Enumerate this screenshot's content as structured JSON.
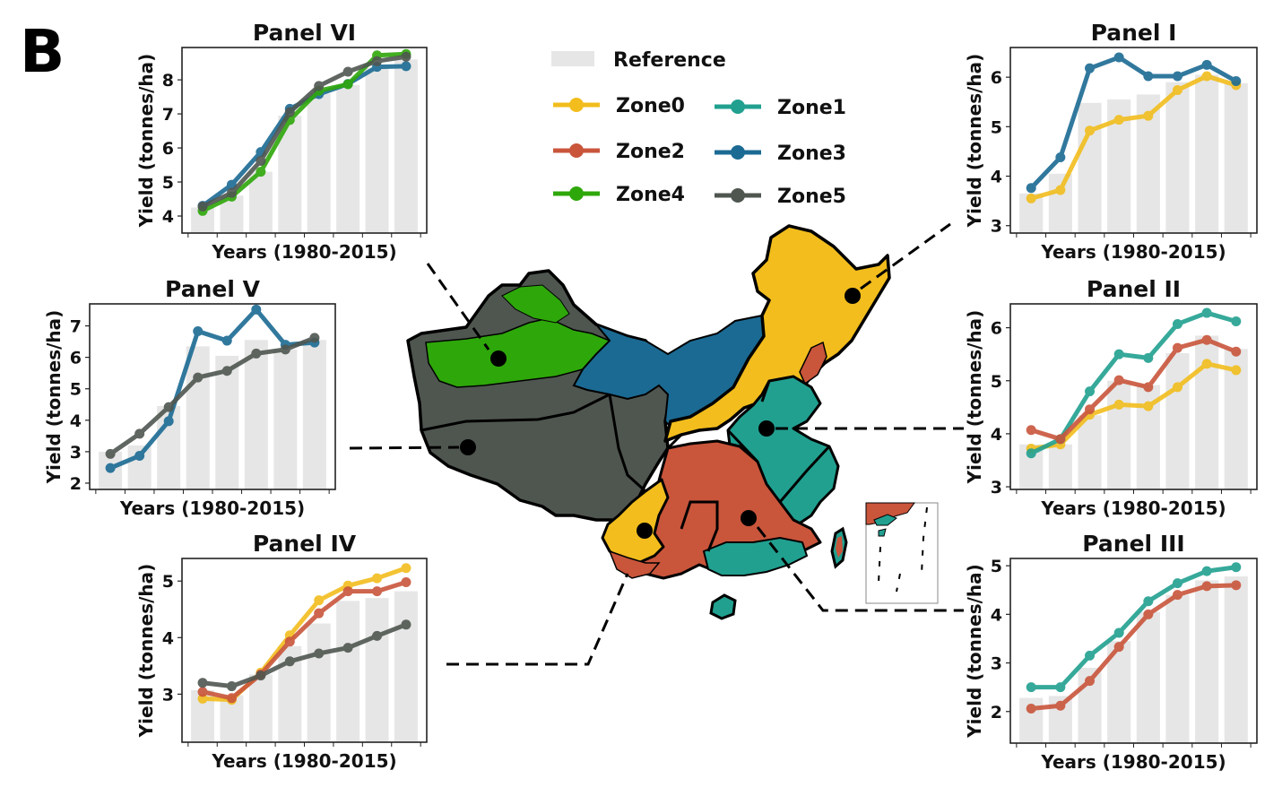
{
  "figure_label": "B",
  "legend": {
    "reference_label": "Reference",
    "reference_color": "#e6e6e6",
    "zones": [
      {
        "name": "Zone0",
        "color": "#f2bd1d"
      },
      {
        "name": "Zone1",
        "color": "#21a090"
      },
      {
        "name": "Zone2",
        "color": "#c9553b"
      },
      {
        "name": "Zone3",
        "color": "#1b6a93"
      },
      {
        "name": "Zone4",
        "color": "#2ea70a"
      },
      {
        "name": "Zone5",
        "color": "#4f5650"
      }
    ]
  },
  "chart_data": [
    {
      "id": "panel-vi",
      "type": "bar+line",
      "title": "Panel VI",
      "xlabel": "Years (1980-2015)",
      "ylabel": "Yield (tonnes/ha)",
      "ylim": [
        3.5,
        8.95
      ],
      "yticks": [
        4,
        5,
        6,
        7,
        8
      ],
      "reference": [
        4.25,
        4.6,
        5.3,
        6.95,
        7.6,
        7.85,
        8.35,
        8.6
      ],
      "series": [
        {
          "zone": "Zone3",
          "values": [
            4.3,
            4.92,
            5.88,
            7.15,
            7.58,
            7.88,
            8.38,
            8.4
          ]
        },
        {
          "zone": "Zone4",
          "values": [
            4.15,
            4.57,
            5.3,
            6.82,
            7.68,
            7.87,
            8.72,
            8.76
          ]
        },
        {
          "zone": "Zone5",
          "values": [
            4.28,
            4.68,
            5.62,
            7.05,
            7.82,
            8.24,
            8.55,
            8.68
          ]
        }
      ]
    },
    {
      "id": "panel-i",
      "type": "bar+line",
      "title": "Panel I",
      "xlabel": "Years (1980-2015)",
      "ylabel": "Yield (tonnes/ha)",
      "ylim": [
        2.85,
        6.6
      ],
      "yticks": [
        3,
        4,
        5,
        6
      ],
      "reference": [
        3.65,
        4.05,
        5.48,
        5.55,
        5.65,
        5.9,
        6.05,
        5.88
      ],
      "series": [
        {
          "zone": "Zone0",
          "values": [
            3.55,
            3.72,
            4.92,
            5.14,
            5.22,
            5.74,
            6.02,
            5.84
          ]
        },
        {
          "zone": "Zone3",
          "values": [
            3.76,
            4.38,
            6.18,
            6.4,
            6.02,
            6.02,
            6.25,
            5.92
          ]
        }
      ]
    },
    {
      "id": "panel-v",
      "type": "bar+line",
      "title": "Panel V",
      "xlabel": "Years (1980-2015)",
      "ylabel": "Yield (tonnes/ha)",
      "ylim": [
        1.8,
        7.7
      ],
      "yticks": [
        2,
        3,
        4,
        5,
        6,
        7
      ],
      "reference": [
        3.0,
        3.2,
        4.45,
        6.35,
        6.05,
        6.55,
        6.25,
        6.55
      ],
      "series": [
        {
          "zone": "Zone3",
          "values": [
            2.48,
            2.87,
            3.97,
            6.83,
            6.53,
            7.52,
            6.4,
            6.47
          ]
        },
        {
          "zone": "Zone5",
          "values": [
            2.93,
            3.57,
            4.42,
            5.36,
            5.57,
            6.12,
            6.25,
            6.62
          ]
        }
      ]
    },
    {
      "id": "panel-ii",
      "type": "bar+line",
      "title": "Panel II",
      "xlabel": "Years (1980-2015)",
      "ylabel": "Yield (tonnes/ha)",
      "ylim": [
        2.95,
        6.45
      ],
      "yticks": [
        3,
        4,
        5,
        6
      ],
      "reference": [
        3.8,
        3.8,
        4.35,
        5.0,
        4.92,
        5.52,
        5.85,
        5.6
      ],
      "series": [
        {
          "zone": "Zone0",
          "values": [
            3.72,
            3.8,
            4.36,
            4.55,
            4.52,
            4.88,
            5.32,
            5.2
          ]
        },
        {
          "zone": "Zone1",
          "values": [
            3.63,
            3.9,
            4.8,
            5.5,
            5.43,
            6.07,
            6.28,
            6.12
          ]
        },
        {
          "zone": "Zone2",
          "values": [
            4.07,
            3.9,
            4.46,
            5.01,
            4.88,
            5.62,
            5.77,
            5.55
          ]
        }
      ]
    },
    {
      "id": "panel-iv",
      "type": "bar+line",
      "title": "Panel IV",
      "xlabel": "Years (1980-2015)",
      "ylabel": "Yield (tonnes/ha)",
      "ylim": [
        2.15,
        5.4
      ],
      "yticks": [
        3,
        4,
        5
      ],
      "reference": [
        3.07,
        2.98,
        3.35,
        3.85,
        4.25,
        4.65,
        4.7,
        4.82
      ],
      "series": [
        {
          "zone": "Zone0",
          "values": [
            2.92,
            2.9,
            3.38,
            4.04,
            4.66,
            4.92,
            5.05,
            5.23
          ]
        },
        {
          "zone": "Zone2",
          "values": [
            3.04,
            2.93,
            3.35,
            3.93,
            4.43,
            4.82,
            4.82,
            4.98
          ]
        },
        {
          "zone": "Zone5",
          "values": [
            3.2,
            3.14,
            3.33,
            3.58,
            3.72,
            3.82,
            4.03,
            4.23
          ]
        }
      ]
    },
    {
      "id": "panel-iii",
      "type": "bar+line",
      "title": "Panel III",
      "xlabel": "Years (1980-2015)",
      "ylabel": "Yield (tonnes/ha)",
      "ylim": [
        1.35,
        5.15
      ],
      "yticks": [
        2,
        3,
        4,
        5
      ],
      "reference": [
        2.28,
        2.32,
        2.9,
        3.45,
        4.05,
        4.4,
        4.7,
        4.78
      ],
      "series": [
        {
          "zone": "Zone1",
          "values": [
            2.5,
            2.5,
            3.15,
            3.62,
            4.27,
            4.64,
            4.89,
            4.97
          ]
        },
        {
          "zone": "Zone2",
          "values": [
            2.06,
            2.12,
            2.63,
            3.33,
            4.0,
            4.4,
            4.58,
            4.6
          ]
        }
      ]
    }
  ]
}
